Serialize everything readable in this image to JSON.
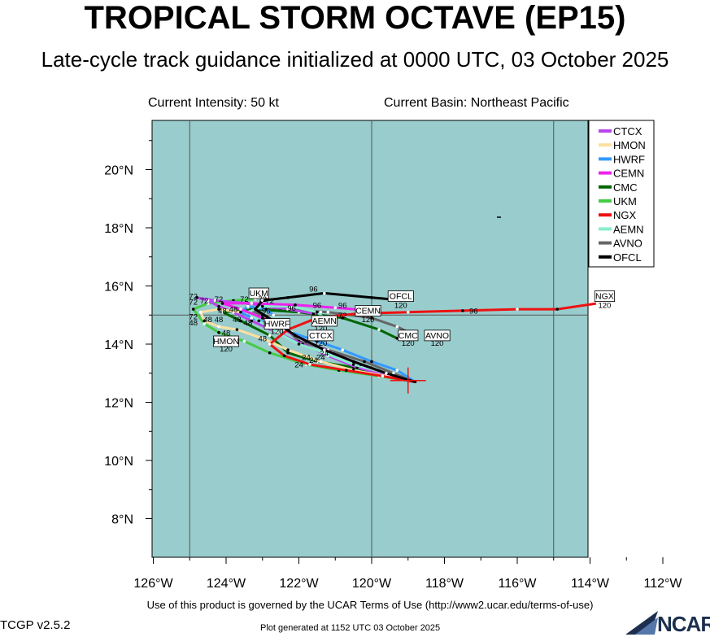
{
  "header": {
    "title": "TROPICAL STORM OCTAVE (EP15)",
    "subtitle": "Late-cycle track guidance initialized at 0000 UTC, 03 October 2025",
    "intensity": "Current Intensity: 50 kt",
    "basin": "Current Basin: Northeast Pacific"
  },
  "map": {
    "ocean_color": "#99cccc",
    "lon_labels": [
      "126°W",
      "124°W",
      "122°W",
      "120°W",
      "118°W",
      "116°W",
      "114°W",
      "112°W"
    ],
    "lat_labels": [
      "20°N",
      "18°N",
      "16°N",
      "14°N",
      "12°N",
      "10°N",
      "8°N"
    ]
  },
  "legend": {
    "items": [
      {
        "label": "CTCX",
        "color": "#bb44ee"
      },
      {
        "label": "HMON",
        "color": "#ffe0a0"
      },
      {
        "label": "HWRF",
        "color": "#3399ff"
      },
      {
        "label": "CEMN",
        "color": "#ee22ee"
      },
      {
        "label": "CMC",
        "color": "#006600"
      },
      {
        "label": "UKM",
        "color": "#44cc44"
      },
      {
        "label": "NGX",
        "color": "#ee1111"
      },
      {
        "label": "AEMN",
        "color": "#88eecc"
      },
      {
        "label": "AVNO",
        "color": "#666666"
      },
      {
        "label": "OFCL",
        "color": "#000000"
      }
    ]
  },
  "tracks": [
    {
      "model": "AVNO",
      "color": "#666666",
      "points": [
        [
          -118.8,
          12.7
        ],
        [
          -119.4,
          13.0
        ],
        [
          -120.2,
          13.4
        ],
        [
          -121.2,
          13.8
        ],
        [
          -122.0,
          14.1
        ],
        [
          -122.4,
          14.6
        ],
        [
          -123.0,
          15.0
        ],
        [
          -123.4,
          15.2
        ],
        [
          -122.5,
          15.2
        ],
        [
          -121.2,
          15.1
        ],
        [
          -120.0,
          14.9
        ],
        [
          -119.3,
          14.6
        ],
        [
          -118.8,
          14.3
        ]
      ]
    },
    {
      "model": "CMC",
      "color": "#006600",
      "points": [
        [
          -118.8,
          12.7
        ],
        [
          -119.6,
          12.9
        ],
        [
          -120.5,
          13.2
        ],
        [
          -121.5,
          13.4
        ],
        [
          -122.3,
          13.7
        ],
        [
          -122.8,
          14.3
        ],
        [
          -123.6,
          14.8
        ],
        [
          -124.1,
          15.1
        ],
        [
          -123.2,
          15.2
        ],
        [
          -122.0,
          15.1
        ],
        [
          -120.8,
          14.9
        ],
        [
          -119.8,
          14.5
        ],
        [
          -119.3,
          14.2
        ]
      ]
    },
    {
      "model": "UKM",
      "color": "#44cc44",
      "points": [
        [
          -118.8,
          12.7
        ],
        [
          -119.8,
          12.9
        ],
        [
          -120.9,
          13.1
        ],
        [
          -121.8,
          13.3
        ],
        [
          -122.8,
          13.7
        ],
        [
          -123.5,
          14.1
        ],
        [
          -124.2,
          14.4
        ],
        [
          -124.6,
          14.7
        ],
        [
          -124.9,
          15.2
        ],
        [
          -124.5,
          15.4
        ],
        [
          -123.8,
          15.5
        ],
        [
          -123.2,
          15.55
        ]
      ]
    },
    {
      "model": "CTCX",
      "color": "#bb44ee",
      "points": [
        [
          -118.8,
          12.7
        ],
        [
          -119.5,
          12.9
        ],
        [
          -120.4,
          13.2
        ],
        [
          -121.2,
          13.6
        ],
        [
          -121.9,
          14.0
        ],
        [
          -122.6,
          14.4
        ],
        [
          -123.3,
          14.8
        ],
        [
          -123.8,
          15.1
        ],
        [
          -124.2,
          15.3
        ],
        [
          -124.5,
          15.5
        ],
        [
          -124.8,
          15.6
        ],
        [
          -124.3,
          15.5
        ],
        [
          -123.4,
          15.4
        ],
        [
          -122.3,
          15.2
        ],
        [
          -121.6,
          15.05
        ],
        [
          -121.4,
          15.1
        ]
      ]
    },
    {
      "model": "HMON",
      "color": "#ffe0a0",
      "points": [
        [
          -118.8,
          12.7
        ],
        [
          -119.6,
          12.9
        ],
        [
          -120.5,
          13.1
        ],
        [
          -121.4,
          13.4
        ],
        [
          -122.3,
          13.8
        ],
        [
          -123.0,
          14.2
        ],
        [
          -123.7,
          14.5
        ],
        [
          -124.2,
          14.6
        ],
        [
          -124.6,
          14.8
        ],
        [
          -124.7,
          15.1
        ],
        [
          -124.2,
          15.2
        ],
        [
          -123.6,
          15.1
        ]
      ]
    },
    {
      "model": "HWRF",
      "color": "#3399ff",
      "points": [
        [
          -118.8,
          12.7
        ],
        [
          -119.3,
          13.1
        ],
        [
          -120.0,
          13.4
        ],
        [
          -120.8,
          13.8
        ],
        [
          -121.5,
          14.1
        ],
        [
          -122.2,
          14.4
        ],
        [
          -122.8,
          14.7
        ],
        [
          -123.3,
          14.9
        ],
        [
          -123.6,
          15.1
        ],
        [
          -123.4,
          15.3
        ],
        [
          -122.9,
          15.2
        ],
        [
          -122.7,
          15.0
        ]
      ]
    },
    {
      "model": "AEMN",
      "color": "#88eecc",
      "points": [
        [
          -118.8,
          12.7
        ],
        [
          -119.6,
          13.0
        ],
        [
          -120.5,
          13.3
        ],
        [
          -121.3,
          13.7
        ],
        [
          -122.0,
          14.0
        ],
        [
          -122.6,
          14.4
        ],
        [
          -123.1,
          14.8
        ],
        [
          -123.4,
          15.1
        ],
        [
          -123.0,
          15.3
        ],
        [
          -122.2,
          15.3
        ],
        [
          -121.5,
          15.1
        ],
        [
          -121.3,
          14.9
        ]
      ]
    },
    {
      "model": "CEMN",
      "color": "#ee22ee",
      "points": [
        [
          -118.8,
          12.7
        ],
        [
          -119.5,
          12.95
        ],
        [
          -120.3,
          13.3
        ],
        [
          -121.1,
          13.7
        ],
        [
          -121.8,
          14.1
        ],
        [
          -122.4,
          14.5
        ],
        [
          -123.0,
          14.9
        ],
        [
          -123.6,
          15.2
        ],
        [
          -124.1,
          15.4
        ],
        [
          -123.3,
          15.4
        ],
        [
          -122.1,
          15.35
        ],
        [
          -121.0,
          15.25
        ],
        [
          -120.0,
          15.15
        ],
        [
          -119.8,
          15.1
        ]
      ]
    },
    {
      "model": "NGX",
      "color": "#ee1111",
      "points": [
        [
          -118.8,
          12.7
        ],
        [
          -119.7,
          12.9
        ],
        [
          -120.7,
          13.1
        ],
        [
          -121.7,
          13.3
        ],
        [
          -122.4,
          13.6
        ],
        [
          -122.8,
          14.0
        ],
        [
          -122.3,
          14.5
        ],
        [
          -121.5,
          14.9
        ],
        [
          -120.4,
          15.05
        ],
        [
          -119.0,
          15.1
        ],
        [
          -117.5,
          15.15
        ],
        [
          -116.0,
          15.2
        ],
        [
          -114.9,
          15.2
        ],
        [
          -113.8,
          15.4
        ]
      ]
    },
    {
      "model": "OFCL",
      "color": "#000000",
      "points": [
        [
          -118.8,
          12.7
        ],
        [
          -119.6,
          13.0
        ],
        [
          -120.5,
          13.4
        ],
        [
          -121.3,
          13.8
        ],
        [
          -122.1,
          14.3
        ],
        [
          -122.7,
          14.8
        ],
        [
          -123.2,
          15.2
        ],
        [
          -123.0,
          15.5
        ],
        [
          -122.3,
          15.6
        ],
        [
          -121.3,
          15.75
        ],
        [
          -120.0,
          15.6
        ],
        [
          -119.1,
          15.5
        ]
      ]
    }
  ],
  "track_labels": [
    {
      "text": "OFCL",
      "lon": -119.2,
      "lat": 15.55,
      "boxed": true
    },
    {
      "text": "120",
      "lon": -119.2,
      "lat": 15.25,
      "boxed": false
    },
    {
      "text": "NGX",
      "lon": -113.6,
      "lat": 15.55,
      "boxed": true
    },
    {
      "text": "120",
      "lon": -113.6,
      "lat": 15.25,
      "boxed": false
    },
    {
      "text": "96",
      "lon": -117.2,
      "lat": 15.05,
      "boxed": false
    },
    {
      "text": "CEMN",
      "lon": -120.1,
      "lat": 15.05,
      "boxed": true
    },
    {
      "text": "120",
      "lon": -120.1,
      "lat": 14.75,
      "boxed": false
    },
    {
      "text": "CMC",
      "lon": -119.0,
      "lat": 14.2,
      "boxed": true
    },
    {
      "text": "120",
      "lon": -119.0,
      "lat": 13.95,
      "boxed": false
    },
    {
      "text": "AVNO",
      "lon": -118.2,
      "lat": 14.2,
      "boxed": true
    },
    {
      "text": "120",
      "lon": -118.2,
      "lat": 13.95,
      "boxed": false
    },
    {
      "text": "UKM",
      "lon": -123.1,
      "lat": 15.65,
      "boxed": true
    },
    {
      "text": "AEMN",
      "lon": -121.3,
      "lat": 14.7,
      "boxed": true
    },
    {
      "text": "120",
      "lon": -121.4,
      "lat": 14.45,
      "boxed": false
    },
    {
      "text": "HWRF",
      "lon": -122.6,
      "lat": 14.6,
      "boxed": true
    },
    {
      "text": "120",
      "lon": -122.6,
      "lat": 14.35,
      "boxed": false
    },
    {
      "text": "CTCX",
      "lon": -121.4,
      "lat": 14.2,
      "boxed": true
    },
    {
      "text": "120",
      "lon": -121.4,
      "lat": 13.95,
      "boxed": false
    },
    {
      "text": "HMON",
      "lon": -124.0,
      "lat": 14.0,
      "boxed": true
    },
    {
      "text": "120",
      "lon": -124.0,
      "lat": 13.75,
      "boxed": false
    },
    {
      "text": "96",
      "lon": -121.6,
      "lat": 15.8,
      "boxed": false
    },
    {
      "text": "96",
      "lon": -121.5,
      "lat": 15.25,
      "boxed": false
    },
    {
      "text": "96",
      "lon": -120.8,
      "lat": 15.25,
      "boxed": false
    },
    {
      "text": "96",
      "lon": -122.2,
      "lat": 15.15,
      "boxed": false
    },
    {
      "text": "96",
      "lon": -122.9,
      "lat": 15.05,
      "boxed": false
    },
    {
      "text": "72",
      "lon": -124.9,
      "lat": 15.55,
      "boxed": false
    },
    {
      "text": "72",
      "lon": -124.6,
      "lat": 15.4,
      "boxed": false
    },
    {
      "text": "72",
      "lon": -124.2,
      "lat": 15.45,
      "boxed": false
    },
    {
      "text": "72",
      "lon": -124.9,
      "lat": 15.35,
      "boxed": false
    },
    {
      "text": "72",
      "lon": -123.5,
      "lat": 15.45,
      "boxed": false
    },
    {
      "text": "72",
      "lon": -123.0,
      "lat": 15.45,
      "boxed": false
    },
    {
      "text": "72",
      "lon": -122.8,
      "lat": 15.4,
      "boxed": false
    },
    {
      "text": "72",
      "lon": -124.9,
      "lat": 14.85,
      "boxed": false
    },
    {
      "text": "72",
      "lon": -120.8,
      "lat": 14.9,
      "boxed": false
    },
    {
      "text": "48",
      "lon": -124.9,
      "lat": 14.65,
      "boxed": false
    },
    {
      "text": "48",
      "lon": -124.5,
      "lat": 14.75,
      "boxed": false
    },
    {
      "text": "48",
      "lon": -124.2,
      "lat": 14.75,
      "boxed": false
    },
    {
      "text": "48",
      "lon": -124.1,
      "lat": 15.05,
      "boxed": false
    },
    {
      "text": "48",
      "lon": -123.8,
      "lat": 15.1,
      "boxed": false
    },
    {
      "text": "48",
      "lon": -123.7,
      "lat": 14.75,
      "boxed": false
    },
    {
      "text": "48",
      "lon": -123.4,
      "lat": 14.65,
      "boxed": false
    },
    {
      "text": "48",
      "lon": -124.0,
      "lat": 14.3,
      "boxed": false
    },
    {
      "text": "48",
      "lon": -123.0,
      "lat": 14.1,
      "boxed": false
    },
    {
      "text": "24",
      "lon": -121.3,
      "lat": 13.6,
      "boxed": false
    },
    {
      "text": "24",
      "lon": -121.8,
      "lat": 13.45,
      "boxed": false
    },
    {
      "text": "24",
      "lon": -121.6,
      "lat": 13.35,
      "boxed": false
    },
    {
      "text": "24",
      "lon": -122.0,
      "lat": 13.2,
      "boxed": false
    },
    {
      "text": "24",
      "lon": -121.4,
      "lat": 13.45,
      "boxed": false
    }
  ],
  "storm_position": {
    "lon": -119.0,
    "lat": 12.75
  },
  "footer": {
    "terms": "Use of this product is governed by the UCAR Terms of Use (http://www2.ucar.edu/terms-of-use)",
    "version": "TCGP v2.5.2",
    "generated": "Plot generated at 1152 UTC   03 October 2025",
    "logo_text": "NCAR"
  }
}
